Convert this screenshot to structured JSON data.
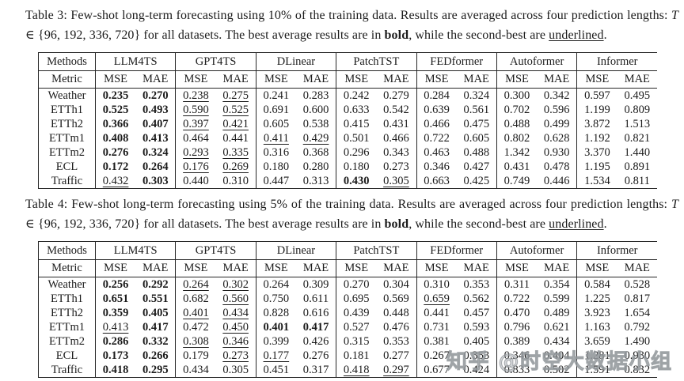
{
  "page": {
    "background": "#ffffff",
    "text_color": "#1b1b1b",
    "rule_color": "#262626"
  },
  "watermark": {
    "text": "知乎 @时空大数据小组"
  },
  "tables": [
    {
      "caption": {
        "p1": "Table 3: Few-shot long-term forecasting using 10% of the training data. Results are averaged across four prediction lengths: ",
        "math_var": "T",
        "math_rest": " ∈ {96, 192, 336, 720} for all datasets. The best average results are in ",
        "bold_word": "bold",
        "p2": ", while the second-best are ",
        "underlined_word": "underlined",
        "p3": "."
      },
      "header": {
        "methods_label": "Methods",
        "metric_label": "Metric",
        "mse": "MSE",
        "mae": "MAE"
      },
      "methods": [
        "LLM4TS",
        "GPT4TS",
        "DLinear",
        "PatchTST",
        "FEDformer",
        "Autoformer",
        "Informer"
      ],
      "rows": [
        {
          "dataset": "Weather",
          "cells": [
            [
              "0.235",
              "b"
            ],
            [
              "0.270",
              "b"
            ],
            [
              "0.238",
              "u"
            ],
            [
              "0.275",
              "u"
            ],
            [
              "0.241",
              ""
            ],
            [
              "0.283",
              ""
            ],
            [
              "0.242",
              ""
            ],
            [
              "0.279",
              ""
            ],
            [
              "0.284",
              ""
            ],
            [
              "0.324",
              ""
            ],
            [
              "0.300",
              ""
            ],
            [
              "0.342",
              ""
            ],
            [
              "0.597",
              ""
            ],
            [
              "0.495",
              ""
            ]
          ]
        },
        {
          "dataset": "ETTh1",
          "cells": [
            [
              "0.525",
              "b"
            ],
            [
              "0.493",
              "b"
            ],
            [
              "0.590",
              "u"
            ],
            [
              "0.525",
              "u"
            ],
            [
              "0.691",
              ""
            ],
            [
              "0.600",
              ""
            ],
            [
              "0.633",
              ""
            ],
            [
              "0.542",
              ""
            ],
            [
              "0.639",
              ""
            ],
            [
              "0.561",
              ""
            ],
            [
              "0.702",
              ""
            ],
            [
              "0.596",
              ""
            ],
            [
              "1.199",
              ""
            ],
            [
              "0.809",
              ""
            ]
          ]
        },
        {
          "dataset": "ETTh2",
          "cells": [
            [
              "0.366",
              "b"
            ],
            [
              "0.407",
              "b"
            ],
            [
              "0.397",
              "u"
            ],
            [
              "0.421",
              "u"
            ],
            [
              "0.605",
              ""
            ],
            [
              "0.538",
              ""
            ],
            [
              "0.415",
              ""
            ],
            [
              "0.431",
              ""
            ],
            [
              "0.466",
              ""
            ],
            [
              "0.475",
              ""
            ],
            [
              "0.488",
              ""
            ],
            [
              "0.499",
              ""
            ],
            [
              "3.872",
              ""
            ],
            [
              "1.513",
              ""
            ]
          ]
        },
        {
          "dataset": "ETTm1",
          "cells": [
            [
              "0.408",
              "b"
            ],
            [
              "0.413",
              "b"
            ],
            [
              "0.464",
              ""
            ],
            [
              "0.441",
              ""
            ],
            [
              "0.411",
              "u"
            ],
            [
              "0.429",
              "u"
            ],
            [
              "0.501",
              ""
            ],
            [
              "0.466",
              ""
            ],
            [
              "0.722",
              ""
            ],
            [
              "0.605",
              ""
            ],
            [
              "0.802",
              ""
            ],
            [
              "0.628",
              ""
            ],
            [
              "1.192",
              ""
            ],
            [
              "0.821",
              ""
            ]
          ]
        },
        {
          "dataset": "ETTm2",
          "cells": [
            [
              "0.276",
              "b"
            ],
            [
              "0.324",
              "b"
            ],
            [
              "0.293",
              "u"
            ],
            [
              "0.335",
              "u"
            ],
            [
              "0.316",
              ""
            ],
            [
              "0.368",
              ""
            ],
            [
              "0.296",
              ""
            ],
            [
              "0.343",
              ""
            ],
            [
              "0.463",
              ""
            ],
            [
              "0.488",
              ""
            ],
            [
              "1.342",
              ""
            ],
            [
              "0.930",
              ""
            ],
            [
              "3.370",
              ""
            ],
            [
              "1.440",
              ""
            ]
          ]
        },
        {
          "dataset": "ECL",
          "cells": [
            [
              "0.172",
              "b"
            ],
            [
              "0.264",
              "b"
            ],
            [
              "0.176",
              "u"
            ],
            [
              "0.269",
              "u"
            ],
            [
              "0.180",
              ""
            ],
            [
              "0.280",
              ""
            ],
            [
              "0.180",
              ""
            ],
            [
              "0.273",
              ""
            ],
            [
              "0.346",
              ""
            ],
            [
              "0.427",
              ""
            ],
            [
              "0.431",
              ""
            ],
            [
              "0.478",
              ""
            ],
            [
              "1.195",
              ""
            ],
            [
              "0.891",
              ""
            ]
          ]
        },
        {
          "dataset": "Traffic",
          "cells": [
            [
              "0.432",
              "u"
            ],
            [
              "0.303",
              "b"
            ],
            [
              "0.440",
              ""
            ],
            [
              "0.310",
              ""
            ],
            [
              "0.447",
              ""
            ],
            [
              "0.313",
              ""
            ],
            [
              "0.430",
              "b"
            ],
            [
              "0.305",
              "u"
            ],
            [
              "0.663",
              ""
            ],
            [
              "0.425",
              ""
            ],
            [
              "0.749",
              ""
            ],
            [
              "0.446",
              ""
            ],
            [
              "1.534",
              ""
            ],
            [
              "0.811",
              ""
            ]
          ]
        }
      ]
    },
    {
      "caption": {
        "p1": "Table 4: Few-shot long-term forecasting using 5% of the training data. Results are averaged across four prediction lengths: ",
        "math_var": "T",
        "math_rest": " ∈ {96, 192, 336, 720} for all datasets. The best average results are in ",
        "bold_word": "bold",
        "p2": ", while the second-best are ",
        "underlined_word": "underlined",
        "p3": "."
      },
      "header": {
        "methods_label": "Methods",
        "metric_label": "Metric",
        "mse": "MSE",
        "mae": "MAE"
      },
      "methods": [
        "LLM4TS",
        "GPT4TS",
        "DLinear",
        "PatchTST",
        "FEDformer",
        "Autoformer",
        "Informer"
      ],
      "rows": [
        {
          "dataset": "Weather",
          "cells": [
            [
              "0.256",
              "b"
            ],
            [
              "0.292",
              "b"
            ],
            [
              "0.264",
              "u"
            ],
            [
              "0.302",
              "u"
            ],
            [
              "0.264",
              ""
            ],
            [
              "0.309",
              ""
            ],
            [
              "0.270",
              ""
            ],
            [
              "0.304",
              ""
            ],
            [
              "0.310",
              ""
            ],
            [
              "0.353",
              ""
            ],
            [
              "0.311",
              ""
            ],
            [
              "0.354",
              ""
            ],
            [
              "0.584",
              ""
            ],
            [
              "0.528",
              ""
            ]
          ]
        },
        {
          "dataset": "ETTh1",
          "cells": [
            [
              "0.651",
              "b"
            ],
            [
              "0.551",
              "b"
            ],
            [
              "0.682",
              ""
            ],
            [
              "0.560",
              "u"
            ],
            [
              "0.750",
              ""
            ],
            [
              "0.611",
              ""
            ],
            [
              "0.695",
              ""
            ],
            [
              "0.569",
              ""
            ],
            [
              "0.659",
              "u"
            ],
            [
              "0.562",
              ""
            ],
            [
              "0.722",
              ""
            ],
            [
              "0.599",
              ""
            ],
            [
              "1.225",
              ""
            ],
            [
              "0.817",
              ""
            ]
          ]
        },
        {
          "dataset": "ETTh2",
          "cells": [
            [
              "0.359",
              "b"
            ],
            [
              "0.405",
              "b"
            ],
            [
              "0.401",
              "u"
            ],
            [
              "0.434",
              "u"
            ],
            [
              "0.828",
              ""
            ],
            [
              "0.616",
              ""
            ],
            [
              "0.439",
              ""
            ],
            [
              "0.448",
              ""
            ],
            [
              "0.441",
              ""
            ],
            [
              "0.457",
              ""
            ],
            [
              "0.470",
              ""
            ],
            [
              "0.489",
              ""
            ],
            [
              "3.923",
              ""
            ],
            [
              "1.654",
              ""
            ]
          ]
        },
        {
          "dataset": "ETTm1",
          "cells": [
            [
              "0.413",
              "u"
            ],
            [
              "0.417",
              "b"
            ],
            [
              "0.472",
              ""
            ],
            [
              "0.450",
              "u"
            ],
            [
              "0.401",
              "b"
            ],
            [
              "0.417",
              "b"
            ],
            [
              "0.527",
              ""
            ],
            [
              "0.476",
              ""
            ],
            [
              "0.731",
              ""
            ],
            [
              "0.593",
              ""
            ],
            [
              "0.796",
              ""
            ],
            [
              "0.621",
              ""
            ],
            [
              "1.163",
              ""
            ],
            [
              "0.792",
              ""
            ]
          ]
        },
        {
          "dataset": "ETTm2",
          "cells": [
            [
              "0.286",
              "b"
            ],
            [
              "0.332",
              "b"
            ],
            [
              "0.308",
              "u"
            ],
            [
              "0.346",
              "u"
            ],
            [
              "0.399",
              ""
            ],
            [
              "0.426",
              ""
            ],
            [
              "0.315",
              ""
            ],
            [
              "0.353",
              ""
            ],
            [
              "0.381",
              ""
            ],
            [
              "0.405",
              ""
            ],
            [
              "0.389",
              ""
            ],
            [
              "0.434",
              ""
            ],
            [
              "3.659",
              ""
            ],
            [
              "1.490",
              ""
            ]
          ]
        },
        {
          "dataset": "ECL",
          "cells": [
            [
              "0.173",
              "b"
            ],
            [
              "0.266",
              "b"
            ],
            [
              "0.179",
              ""
            ],
            [
              "0.273",
              "u"
            ],
            [
              "0.177",
              "u"
            ],
            [
              "0.276",
              ""
            ],
            [
              "0.181",
              ""
            ],
            [
              "0.277",
              ""
            ],
            [
              "0.267",
              ""
            ],
            [
              "0.353",
              ""
            ],
            [
              "0.346",
              ""
            ],
            [
              "0.404",
              ""
            ],
            [
              "1.281",
              ""
            ],
            [
              "0.930",
              ""
            ]
          ]
        },
        {
          "dataset": "Traffic",
          "cells": [
            [
              "0.418",
              "b"
            ],
            [
              "0.295",
              "b"
            ],
            [
              "0.434",
              ""
            ],
            [
              "0.305",
              ""
            ],
            [
              "0.451",
              ""
            ],
            [
              "0.317",
              ""
            ],
            [
              "0.418",
              "u"
            ],
            [
              "0.297",
              "u"
            ],
            [
              "0.677",
              ""
            ],
            [
              "0.424",
              ""
            ],
            [
              "0.833",
              ""
            ],
            [
              "0.502",
              ""
            ],
            [
              "1.591",
              ""
            ],
            [
              "0.832",
              ""
            ]
          ]
        }
      ]
    }
  ]
}
